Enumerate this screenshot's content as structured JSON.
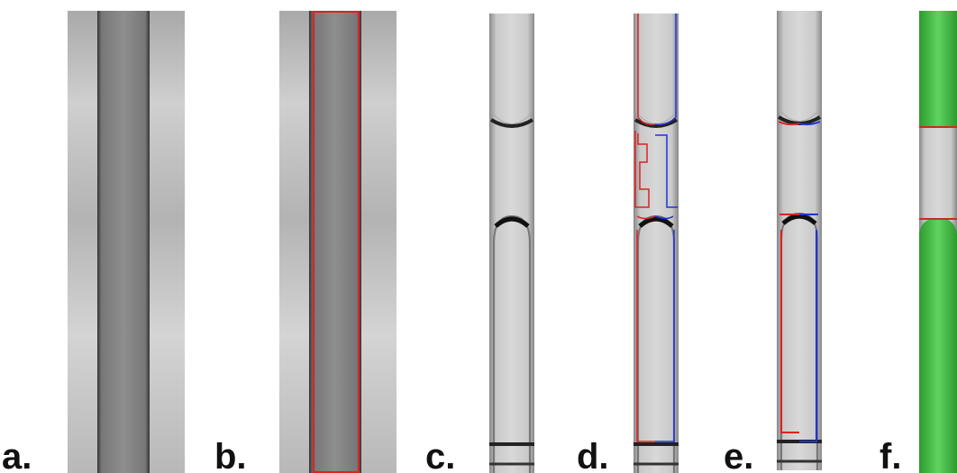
{
  "panels": [
    {
      "label": "a."
    },
    {
      "label": "b."
    },
    {
      "label": "c."
    },
    {
      "label": "d."
    },
    {
      "label": "e."
    },
    {
      "label": "f."
    }
  ]
}
